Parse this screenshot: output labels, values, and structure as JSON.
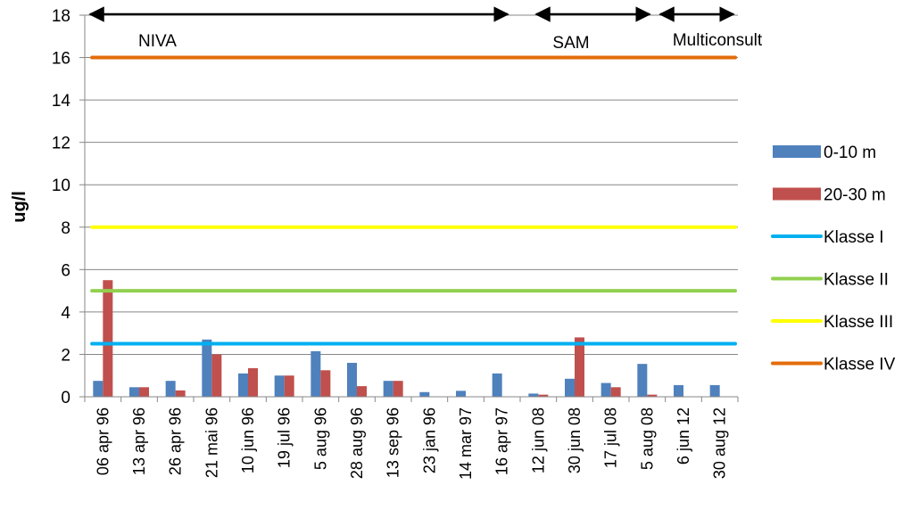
{
  "chart_data": {
    "type": "bar",
    "ylabel": "ug/l",
    "ylim": [
      0,
      18
    ],
    "yticks": [
      "0",
      "2",
      "4",
      "6",
      "8",
      "10",
      "12",
      "14",
      "16",
      "18"
    ],
    "grid": true,
    "legend_position": "right",
    "categories": [
      "06 apr 96",
      "13 apr 96",
      "26 apr 96",
      "21 mai 96",
      "10 jun 96",
      "19 jul 96",
      "5 aug 96",
      "28 aug 96",
      "13 sep 96",
      "23 jan 96",
      "14 mar 97",
      "16 apr 97",
      "12 jun 08",
      "30 jun 08",
      "17 jul 08",
      "5 aug 08",
      "6 jun 12",
      "30 aug 12"
    ],
    "series": [
      {
        "name": "0-10 m",
        "color": "#4F81BD",
        "values": [
          0.75,
          0.45,
          0.75,
          2.7,
          1.1,
          1.0,
          2.15,
          1.6,
          0.75,
          0.22,
          0.28,
          1.1,
          0.15,
          0.85,
          0.65,
          1.55,
          0.55,
          0.55
        ]
      },
      {
        "name": "20-30 m",
        "color": "#C0504D",
        "values": [
          5.5,
          0.45,
          0.3,
          2.0,
          1.35,
          1.0,
          1.25,
          0.5,
          0.75,
          null,
          null,
          null,
          0.1,
          2.8,
          0.45,
          0.1,
          null,
          null
        ]
      }
    ],
    "reference_lines": [
      {
        "name": "Klasse I",
        "value": 2.5,
        "color": "#00B0F0"
      },
      {
        "name": "Klasse II",
        "value": 5,
        "color": "#92D050"
      },
      {
        "name": "Klasse III",
        "value": 8,
        "color": "#FFFF00"
      },
      {
        "name": "Klasse IV",
        "value": 16,
        "color": "#E36C0A"
      }
    ],
    "annotations": [
      {
        "label": "NIVA",
        "from_category": 0,
        "to_category": 11
      },
      {
        "label": "SAM",
        "from_category": 12,
        "to_category": 14
      },
      {
        "label": "Multiconsult",
        "from_category": 15,
        "to_category": 17
      }
    ]
  }
}
